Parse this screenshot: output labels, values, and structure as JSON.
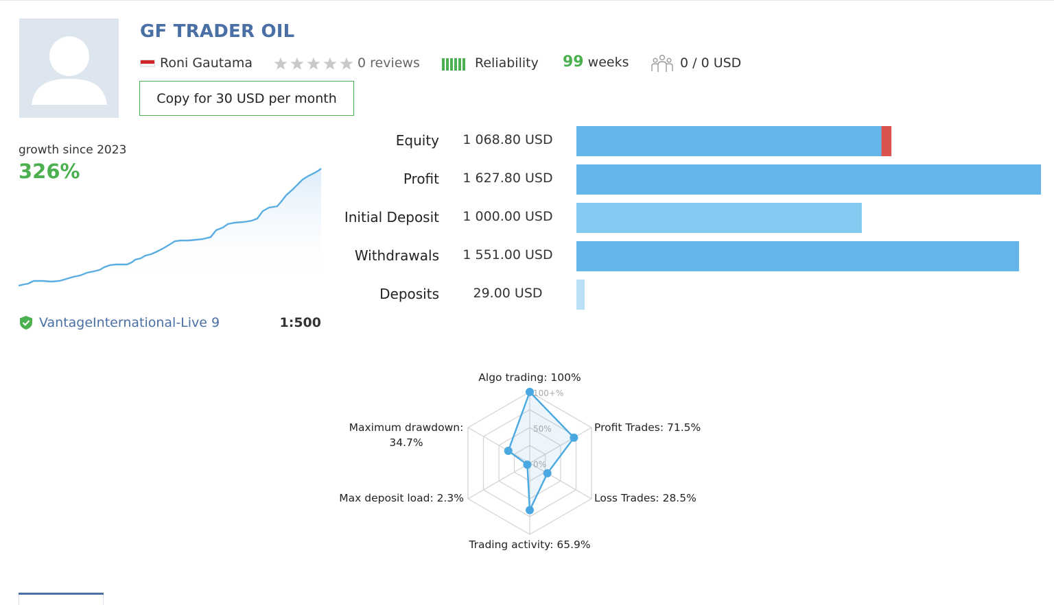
{
  "header": {
    "title": "GF TRADER OIL",
    "author": "Roni Gautama",
    "reviews": "0 reviews",
    "reliability_label": "Reliability",
    "weeks_number": "99",
    "weeks_label": "weeks",
    "subscribers": "0 / 0 USD",
    "copy_button": "Copy for 30 USD per month",
    "rating_stars": 0,
    "colors": {
      "title": "#4a6fa5",
      "accent_green": "#4caf50"
    }
  },
  "growth": {
    "label": "growth since 2023",
    "value": "326%",
    "broker": "VantageInternational-Live 9",
    "leverage": "1:500",
    "line_color": "#5aade0"
  },
  "metrics": [
    {
      "label": "Equity",
      "value": "1 068.80 USD"
    },
    {
      "label": "Profit",
      "value": "1 627.80 USD"
    },
    {
      "label": "Initial Deposit",
      "value": "1 000.00 USD"
    },
    {
      "label": "Withdrawals",
      "value": "1 551.00 USD"
    },
    {
      "label": "Deposits",
      "value": "29.00 USD"
    }
  ],
  "metric_bars": [
    {
      "amount": 1068.8,
      "color": "#63b5ea",
      "tail_amount": 35,
      "tail_color": "#d9534f"
    },
    {
      "amount": 1627.8,
      "color": "#63b5ea"
    },
    {
      "amount": 1000.0,
      "color": "#84cbf2"
    },
    {
      "amount": 1551.0,
      "color": "#63b5ea"
    },
    {
      "amount": 29.0,
      "color": "#b9e0f7"
    }
  ],
  "radar": {
    "scale_labels": [
      "100+%",
      "50%",
      "0%"
    ],
    "axes": [
      {
        "line1": "Algo trading: 100%",
        "line2": "",
        "value": 1.0
      },
      {
        "line1": "Profit Trades: 71.5%",
        "line2": "",
        "value": 0.715
      },
      {
        "line1": "Loss Trades: 28.5%",
        "line2": "",
        "value": 0.285
      },
      {
        "line1": "Trading activity: 65.9%",
        "line2": "",
        "value": 0.659
      },
      {
        "line1": "Max deposit load: 2.3%",
        "line2": "",
        "value": 0.023
      },
      {
        "line1": "Maximum drawdown:",
        "line2": "34.7%",
        "value": 0.347
      }
    ]
  }
}
